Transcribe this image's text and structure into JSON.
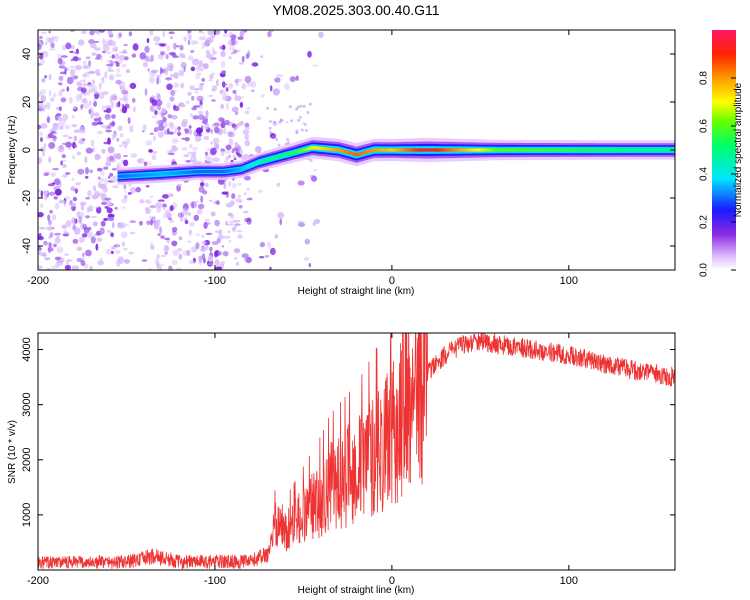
{
  "title": "YM08.2025.303.00.40.G11",
  "chart_data": [
    {
      "type": "heatmap",
      "name": "spectrogram",
      "xlabel": "Height of straight line (km)",
      "ylabel": "Frequency (Hz)",
      "xlim": [
        -200,
        160
      ],
      "ylim": [
        -50,
        50
      ],
      "xticks": [
        -200,
        -100,
        0,
        100
      ],
      "xtick_labels": [
        "-200",
        "-100",
        "0",
        "100"
      ],
      "yticks": [
        -40,
        -20,
        0,
        20,
        40
      ],
      "ytick_labels": [
        "-40",
        "-20",
        "0",
        "20",
        "40"
      ],
      "colorbar": {
        "label": "Normalized spectral amplitude",
        "range": [
          0,
          1
        ],
        "ticks": [
          0.0,
          0.2,
          0.4,
          0.6,
          0.8
        ],
        "tick_labels": [
          "0.0",
          "0.2",
          "0.4",
          "0.6",
          "0.8"
        ]
      },
      "signal_track": {
        "description_points_x": [
          -155,
          -130,
          -110,
          -95,
          -85,
          -75,
          -65,
          -55,
          -45,
          -30,
          -20,
          -10,
          0,
          20,
          60,
          100,
          140,
          160
        ],
        "freq_y": [
          -11,
          -10,
          -9,
          -9,
          -8,
          -5,
          -3,
          -1,
          1,
          0,
          -2,
          0,
          0,
          0,
          0,
          0,
          0,
          0
        ],
        "amplitude": [
          0.3,
          0.35,
          0.3,
          0.3,
          0.35,
          0.45,
          0.5,
          0.55,
          0.7,
          0.8,
          0.85,
          0.8,
          0.75,
          0.95,
          0.6,
          0.55,
          0.5,
          0.5
        ]
      }
    },
    {
      "type": "line",
      "name": "snr",
      "xlabel": "Height of straight line (km)",
      "ylabel": "SNR (10 * v/v)",
      "xlim": [
        -200,
        160
      ],
      "ylim": [
        0,
        4300
      ],
      "xticks": [
        -200,
        -100,
        0,
        100
      ],
      "xtick_labels": [
        "-200",
        "-100",
        "0",
        "100"
      ],
      "yticks": [
        1000,
        2000,
        3000,
        4000
      ],
      "ytick_labels": [
        "1000",
        "2000",
        "3000",
        "4000"
      ],
      "color": "#ee3333",
      "envelope": {
        "x": [
          -200,
          -150,
          -135,
          -120,
          -80,
          -70,
          -65,
          -60,
          -50,
          -40,
          -35,
          -30,
          -20,
          -10,
          0,
          10,
          20,
          30,
          40,
          50,
          60,
          80,
          100,
          120,
          140,
          160
        ],
        "y": [
          130,
          140,
          250,
          150,
          150,
          300,
          900,
          700,
          1000,
          1300,
          1500,
          1600,
          1800,
          2100,
          2400,
          3000,
          3600,
          3900,
          4100,
          4150,
          4100,
          4000,
          3900,
          3750,
          3600,
          3500
        ]
      }
    }
  ]
}
